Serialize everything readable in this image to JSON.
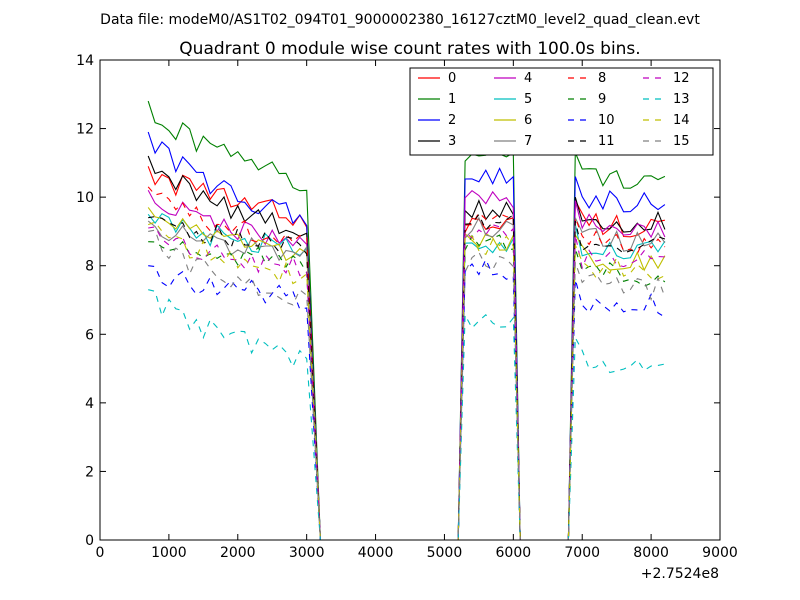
{
  "header": {
    "data_file_label": "Data file: modeM0/AS1T02_094T01_9000002380_16127cztM0_level2_quad_clean.evt"
  },
  "chart_data": {
    "type": "line",
    "title": "Quadrant 0 module wise count rates with 100.0s bins.",
    "xlabel": "",
    "ylabel": "",
    "x_offset_label": "+2.7524e8",
    "xlim": [
      0,
      9000
    ],
    "ylim": [
      0,
      14
    ],
    "xticks": [
      0,
      1000,
      2000,
      3000,
      4000,
      5000,
      6000,
      7000,
      8000,
      9000
    ],
    "yticks": [
      0,
      2,
      4,
      6,
      8,
      10,
      12,
      14
    ],
    "grid": false,
    "legend_placement": "top-right",
    "legend_columns": 4,
    "segments": [
      {
        "x_start": 700,
        "x_end": 3000
      },
      {
        "x_start": 5300,
        "x_end": 6000
      },
      {
        "x_start": 6900,
        "x_end": 8200
      }
    ],
    "gaps": [
      {
        "drop_start": 3000,
        "zero_start": 3200,
        "zero_end": 5200,
        "rise_end": 5300
      },
      {
        "drop_start": 6000,
        "zero_start": 6100,
        "zero_end": 6800,
        "rise_end": 6900
      }
    ],
    "series": [
      {
        "name": "0",
        "color": "#ff0000",
        "dash": "solid",
        "levels": [
          10.9,
          9.4,
          9.2,
          9.3
        ]
      },
      {
        "name": "1",
        "color": "#008000",
        "dash": "solid",
        "levels": [
          12.8,
          10.4,
          11.2,
          10.7
        ]
      },
      {
        "name": "2",
        "color": "#0000ff",
        "dash": "solid",
        "levels": [
          11.9,
          9.3,
          10.6,
          10.0
        ]
      },
      {
        "name": "3",
        "color": "#000000",
        "dash": "solid",
        "levels": [
          11.2,
          9.0,
          9.6,
          9.4
        ]
      },
      {
        "name": "4",
        "color": "#bf00bf",
        "dash": "solid",
        "levels": [
          10.2,
          8.6,
          9.9,
          9.3
        ]
      },
      {
        "name": "5",
        "color": "#00bfbf",
        "dash": "solid",
        "levels": [
          9.5,
          8.4,
          8.5,
          8.6
        ]
      },
      {
        "name": "6",
        "color": "#bfbf00",
        "dash": "solid",
        "levels": [
          9.7,
          8.2,
          8.7,
          8.3
        ]
      },
      {
        "name": "7",
        "color": "#808080",
        "dash": "solid",
        "levels": [
          9.3,
          8.3,
          9.1,
          8.8
        ]
      },
      {
        "name": "8",
        "color": "#ff0000",
        "dash": "dashed",
        "levels": [
          10.3,
          8.5,
          9.4,
          8.8
        ]
      },
      {
        "name": "9",
        "color": "#008000",
        "dash": "dashed",
        "levels": [
          8.7,
          8.1,
          8.6,
          7.9
        ]
      },
      {
        "name": "10",
        "color": "#0000ff",
        "dash": "dashed",
        "levels": [
          8.0,
          7.0,
          7.9,
          7.0
        ]
      },
      {
        "name": "11",
        "color": "#000000",
        "dash": "dashed",
        "levels": [
          9.4,
          8.5,
          9.2,
          8.7
        ]
      },
      {
        "name": "12",
        "color": "#bf00bf",
        "dash": "dashed",
        "levels": [
          9.1,
          7.9,
          8.9,
          8.3
        ]
      },
      {
        "name": "13",
        "color": "#00bfbf",
        "dash": "dashed",
        "levels": [
          7.3,
          5.3,
          6.4,
          5.3
        ]
      },
      {
        "name": "14",
        "color": "#bfbf00",
        "dash": "dashed",
        "levels": [
          9.2,
          7.7,
          8.6,
          8.0
        ]
      },
      {
        "name": "15",
        "color": "#808080",
        "dash": "dashed",
        "levels": [
          9.0,
          7.0,
          8.1,
          7.5
        ]
      }
    ]
  }
}
